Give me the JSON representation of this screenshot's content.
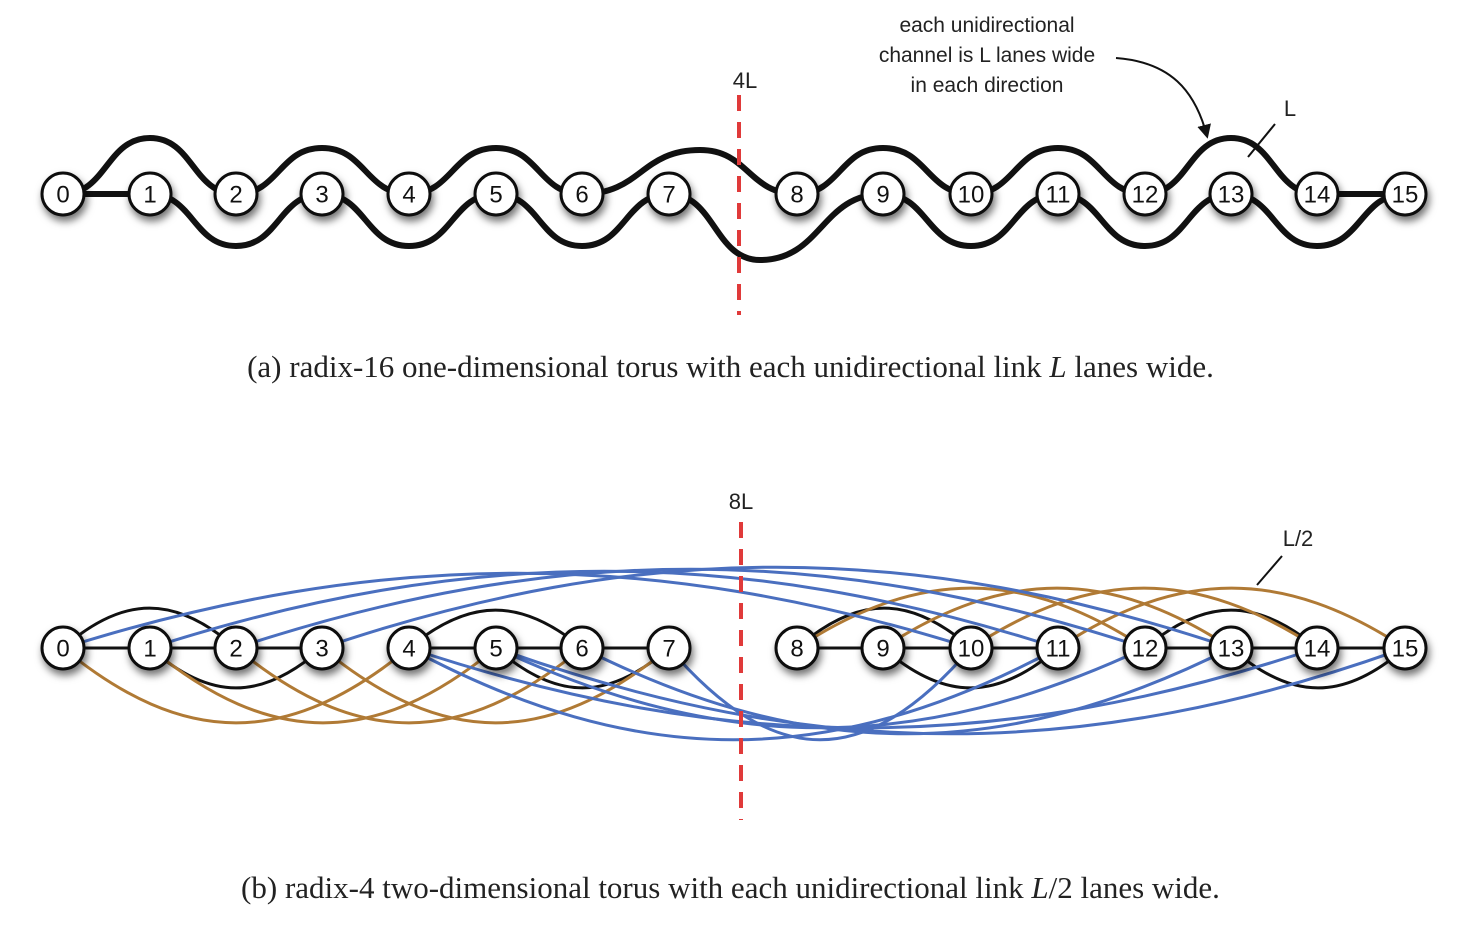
{
  "panel_a": {
    "nodes": [
      "0",
      "1",
      "2",
      "3",
      "4",
      "5",
      "6",
      "7",
      "8",
      "9",
      "10",
      "11",
      "12",
      "13",
      "14",
      "15"
    ],
    "bisection_label": "4L",
    "annotation_lines": [
      "each unidirectional",
      "channel is L lanes wide",
      "in each direction"
    ],
    "link_label": "L",
    "caption_prefix": "(a) radix-16 one-dimensional torus with each unidirectional link ",
    "caption_var": "L",
    "caption_suffix": " lanes wide."
  },
  "panel_b": {
    "nodes": [
      "0",
      "1",
      "2",
      "3",
      "4",
      "5",
      "6",
      "7",
      "8",
      "9",
      "10",
      "11",
      "12",
      "13",
      "14",
      "15"
    ],
    "bisection_label": "8L",
    "link_label": "L/2",
    "caption_prefix": "(b) radix-4 two-dimensional torus with each unidirectional link ",
    "caption_var": "L",
    "caption_suffix": "/2 lanes wide."
  },
  "colors": {
    "black_links": "#111111",
    "blue_links": "#4a6fbf",
    "brown_links": "#b07a35",
    "bisection": "#e03a3a"
  }
}
